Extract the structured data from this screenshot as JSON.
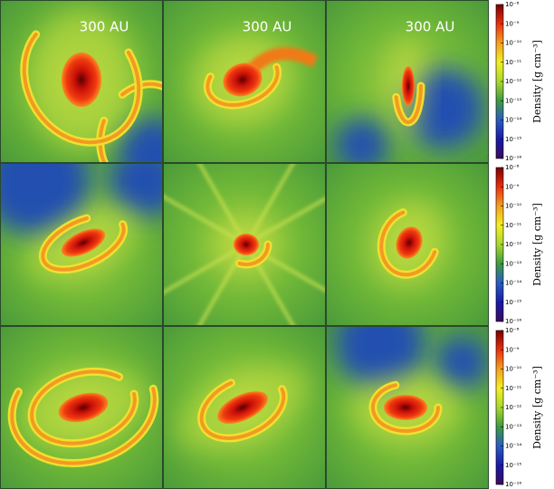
{
  "chart_data": {
    "type": "image-grid",
    "scale_labels": [
      "300 AU",
      "300 AU",
      "300 AU"
    ],
    "colorbar": {
      "label": "Density [g cm⁻³]",
      "log": true,
      "clim": [
        1e-16,
        1e-08
      ],
      "ticks": [
        {
          "value": 1e-08,
          "label": "10⁻⁸"
        },
        {
          "value": 1e-09,
          "label": "10⁻⁹"
        },
        {
          "value": 1e-10,
          "label": "10⁻¹⁰"
        },
        {
          "value": 1e-11,
          "label": "10⁻¹¹"
        },
        {
          "value": 1e-12,
          "label": "10⁻¹²"
        },
        {
          "value": 1e-13,
          "label": "10⁻¹³"
        },
        {
          "value": 1e-14,
          "label": "10⁻¹⁴"
        },
        {
          "value": 1e-15,
          "label": "10⁻¹⁵"
        },
        {
          "value": 1e-16,
          "label": "10⁻¹⁶"
        }
      ],
      "colors": [
        "#3b0a5e",
        "#1a1aa8",
        "#2a5cc0",
        "#3f9a40",
        "#a8d830",
        "#f4f020",
        "#f4a020",
        "#e83010",
        "#7a0000"
      ]
    }
  }
}
